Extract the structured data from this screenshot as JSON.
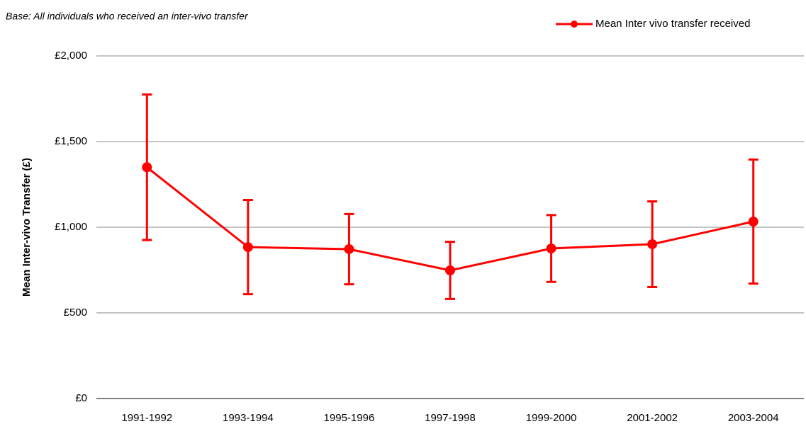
{
  "chart_data": {
    "type": "line",
    "subtitle": "Base: All individuals who received an inter-vivo transfer",
    "y_label": "Mean Inter-vivo Transfer (£)",
    "categories": [
      "1991-1992",
      "1993-1994",
      "1995-1996",
      "1997-1998",
      "1999-2000",
      "2001-2002",
      "2003-2004"
    ],
    "series": [
      {
        "name": "Mean Inter vivo transfer received",
        "color": "#ff0000",
        "values": [
          1350,
          884,
          872,
          748,
          876,
          901,
          1033
        ],
        "errors": [
          425,
          275,
          205,
          167,
          195,
          250,
          362
        ]
      }
    ],
    "ylim": [
      0,
      2000
    ],
    "yticks": [
      {
        "value": 0,
        "label": "£0"
      },
      {
        "value": 500,
        "label": "£500"
      },
      {
        "value": 1000,
        "label": "£1,000"
      },
      {
        "value": 1500,
        "label": "£1,500"
      },
      {
        "value": 2000,
        "label": "£2,000"
      }
    ],
    "grid": true,
    "legend": "top-right"
  }
}
